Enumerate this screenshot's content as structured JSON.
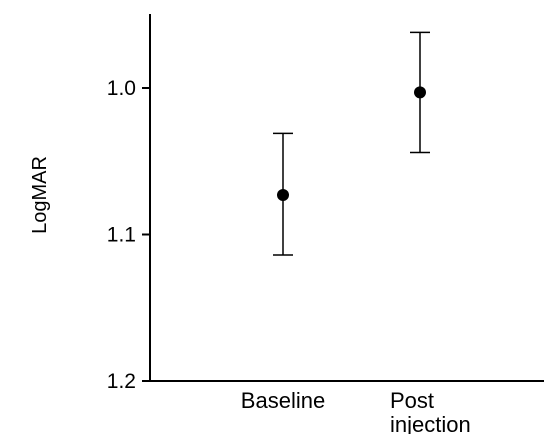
{
  "chart_data": {
    "type": "scatter",
    "title": "",
    "xlabel": "",
    "ylabel": "LogMAR",
    "y_inverted": true,
    "ylim": [
      0.96,
      1.2
    ],
    "yticks": [
      {
        "value": 1.0,
        "label": "1.0"
      },
      {
        "value": 1.1,
        "label": "1.1"
      },
      {
        "value": 1.2,
        "label": "1.2"
      }
    ],
    "categories": [
      {
        "lines": [
          "Baseline"
        ]
      },
      {
        "lines": [
          "Post",
          "injection"
        ]
      }
    ],
    "points": [
      {
        "category_index": 0,
        "y": 1.073,
        "error_low": 1.031,
        "error_high": 1.114
      },
      {
        "category_index": 1,
        "y": 1.003,
        "error_low": 0.962,
        "error_high": 1.044
      }
    ],
    "grid": false,
    "colors": {
      "marker": "#000000",
      "axis": "#000000"
    }
  }
}
